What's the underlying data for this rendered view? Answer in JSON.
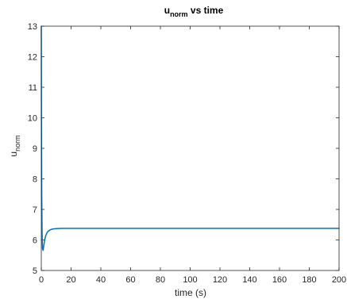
{
  "chart_data": {
    "type": "line",
    "title": {
      "base": "u",
      "subscript": "norm",
      "suffix": " vs time"
    },
    "xlabel": "time (s)",
    "ylabel": {
      "base": "u",
      "subscript": "norm"
    },
    "xlim": [
      0,
      200
    ],
    "ylim": [
      5,
      13
    ],
    "xticks": [
      0,
      20,
      40,
      60,
      80,
      100,
      120,
      140,
      160,
      180,
      200
    ],
    "xtick_labels": [
      "0",
      "20",
      "40",
      "60",
      "80",
      "100",
      "120",
      "140",
      "160",
      "180",
      "200"
    ],
    "yticks": [
      5,
      6,
      7,
      8,
      9,
      10,
      11,
      12,
      13
    ],
    "ytick_labels": [
      "5",
      "6",
      "7",
      "8",
      "9",
      "10",
      "11",
      "12",
      "13"
    ],
    "grid": false,
    "box": true,
    "series": [
      {
        "color": "#0072BD",
        "x": [
          0,
          0.1,
          0.3,
          0.5,
          0.8,
          1.2,
          1.6,
          2,
          2.5,
          3,
          3.5,
          4,
          5,
          6,
          7,
          8,
          10,
          12,
          15,
          20,
          30,
          50,
          100,
          150,
          200
        ],
        "y": [
          13.0,
          10.0,
          7.5,
          6.3,
          5.72,
          5.66,
          5.78,
          5.92,
          6.05,
          6.14,
          6.2,
          6.25,
          6.3,
          6.33,
          6.35,
          6.36,
          6.37,
          6.375,
          6.38,
          6.38,
          6.38,
          6.38,
          6.38,
          6.38,
          6.38
        ]
      }
    ]
  }
}
